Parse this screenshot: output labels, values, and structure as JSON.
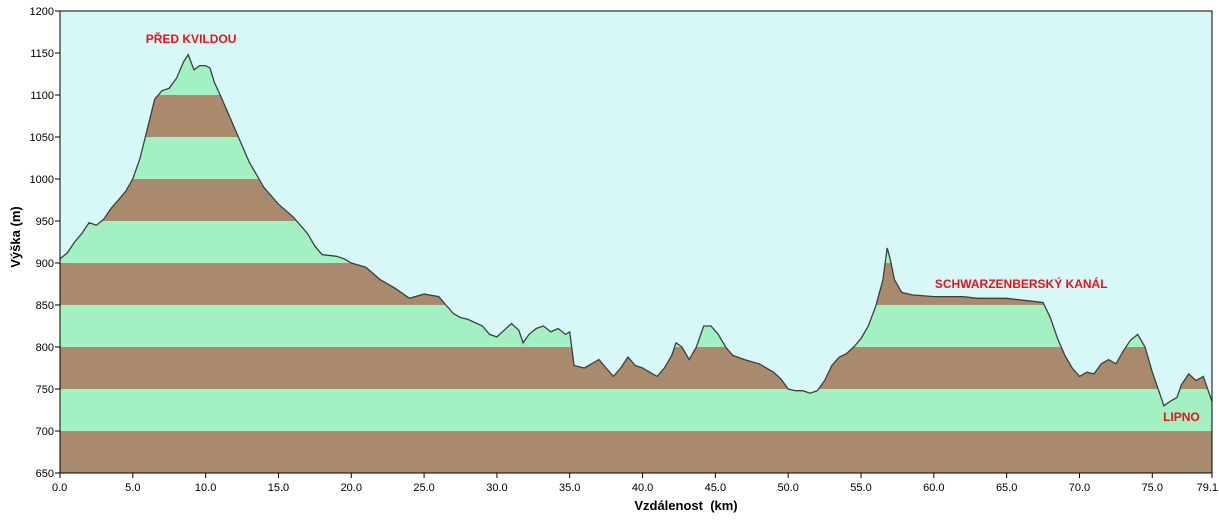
{
  "chart_data": {
    "type": "area",
    "xlabel": "Vzdálenost  (km)",
    "ylabel": "Výška (m)",
    "xlim": [
      0,
      79.1
    ],
    "ylim": [
      650,
      1200
    ],
    "x_ticks": [
      "0.0",
      "5.0",
      "10.0",
      "15.0",
      "20.0",
      "25.0",
      "30.0",
      "35.0",
      "40.0",
      "45.0",
      "50.0",
      "55.0",
      "60.0",
      "65.0",
      "70.0",
      "75.0",
      "79.1"
    ],
    "x_tick_values": [
      0,
      5,
      10,
      15,
      20,
      25,
      30,
      35,
      40,
      45,
      50,
      55,
      60,
      65,
      70,
      75,
      79.1
    ],
    "y_ticks": [
      "650",
      "700",
      "750",
      "800",
      "850",
      "900",
      "950",
      "1000",
      "1050",
      "1100",
      "1150",
      "1200"
    ],
    "y_tick_values": [
      650,
      700,
      750,
      800,
      850,
      900,
      950,
      1000,
      1050,
      1100,
      1150,
      1200
    ],
    "band_colors": [
      "#a98a6c",
      "#a3f0c2"
    ],
    "background_color": "#d8f8f8",
    "line_color": "#3a4040",
    "annotation_color": "#e8121c",
    "annotations": [
      {
        "text": "PŘED KVILDOU",
        "x": 9,
        "y": 1162
      },
      {
        "text": "SCHWARZENBERSKÝ KANÁL",
        "x": 66,
        "y": 870
      },
      {
        "text": "LIPNO",
        "x": 77,
        "y": 712
      }
    ],
    "profile": [
      [
        0,
        905
      ],
      [
        0.5,
        912
      ],
      [
        1,
        925
      ],
      [
        1.5,
        935
      ],
      [
        2,
        948
      ],
      [
        2.5,
        945
      ],
      [
        3,
        952
      ],
      [
        3.5,
        965
      ],
      [
        4,
        975
      ],
      [
        4.5,
        985
      ],
      [
        5,
        1000
      ],
      [
        5.5,
        1025
      ],
      [
        6,
        1060
      ],
      [
        6.5,
        1095
      ],
      [
        7,
        1105
      ],
      [
        7.5,
        1108
      ],
      [
        8,
        1120
      ],
      [
        8.5,
        1140
      ],
      [
        8.8,
        1148
      ],
      [
        9.2,
        1130
      ],
      [
        9.6,
        1135
      ],
      [
        10,
        1135
      ],
      [
        10.3,
        1132
      ],
      [
        10.6,
        1115
      ],
      [
        11,
        1100
      ],
      [
        11.5,
        1080
      ],
      [
        12,
        1060
      ],
      [
        12.5,
        1040
      ],
      [
        13,
        1020
      ],
      [
        13.5,
        1005
      ],
      [
        14,
        990
      ],
      [
        15,
        970
      ],
      [
        16,
        955
      ],
      [
        17,
        935
      ],
      [
        17.5,
        920
      ],
      [
        18,
        910
      ],
      [
        19,
        908
      ],
      [
        19.5,
        905
      ],
      [
        20,
        900
      ],
      [
        21,
        895
      ],
      [
        22,
        880
      ],
      [
        23,
        870
      ],
      [
        24,
        858
      ],
      [
        25,
        863
      ],
      [
        26,
        860
      ],
      [
        26.5,
        850
      ],
      [
        27,
        840
      ],
      [
        27.5,
        835
      ],
      [
        28,
        833
      ],
      [
        29,
        825
      ],
      [
        29.5,
        815
      ],
      [
        30,
        812
      ],
      [
        30.5,
        820
      ],
      [
        31,
        828
      ],
      [
        31.5,
        820
      ],
      [
        31.8,
        805
      ],
      [
        32.2,
        815
      ],
      [
        32.7,
        822
      ],
      [
        33.2,
        825
      ],
      [
        33.7,
        818
      ],
      [
        34.2,
        822
      ],
      [
        34.7,
        815
      ],
      [
        35,
        818
      ],
      [
        35.3,
        778
      ],
      [
        36,
        775
      ],
      [
        36.5,
        780
      ],
      [
        37,
        785
      ],
      [
        37.5,
        775
      ],
      [
        38,
        765
      ],
      [
        38.5,
        775
      ],
      [
        39,
        788
      ],
      [
        39.5,
        778
      ],
      [
        40,
        775
      ],
      [
        40.5,
        770
      ],
      [
        41,
        765
      ],
      [
        41.5,
        775
      ],
      [
        42,
        790
      ],
      [
        42.3,
        805
      ],
      [
        42.7,
        800
      ],
      [
        43.2,
        785
      ],
      [
        43.7,
        800
      ],
      [
        44.2,
        825
      ],
      [
        44.7,
        825
      ],
      [
        45.2,
        815
      ],
      [
        45.7,
        800
      ],
      [
        46.2,
        790
      ],
      [
        47,
        785
      ],
      [
        48,
        780
      ],
      [
        49,
        770
      ],
      [
        49.5,
        762
      ],
      [
        50,
        750
      ],
      [
        50.5,
        748
      ],
      [
        51,
        748
      ],
      [
        51.5,
        745
      ],
      [
        52,
        748
      ],
      [
        52.5,
        760
      ],
      [
        53,
        778
      ],
      [
        53.5,
        788
      ],
      [
        54,
        792
      ],
      [
        54.5,
        800
      ],
      [
        55,
        810
      ],
      [
        55.5,
        825
      ],
      [
        56,
        848
      ],
      [
        56.5,
        880
      ],
      [
        56.8,
        918
      ],
      [
        57,
        905
      ],
      [
        57.3,
        880
      ],
      [
        57.8,
        865
      ],
      [
        58.5,
        862
      ],
      [
        60,
        860
      ],
      [
        62,
        860
      ],
      [
        63,
        858
      ],
      [
        65,
        858
      ],
      [
        66.5,
        855
      ],
      [
        67.5,
        853
      ],
      [
        68,
        835
      ],
      [
        68.5,
        810
      ],
      [
        69,
        790
      ],
      [
        69.5,
        775
      ],
      [
        70,
        765
      ],
      [
        70.5,
        770
      ],
      [
        71,
        768
      ],
      [
        71.5,
        780
      ],
      [
        72,
        785
      ],
      [
        72.5,
        780
      ],
      [
        73,
        795
      ],
      [
        73.5,
        808
      ],
      [
        74,
        815
      ],
      [
        74.5,
        800
      ],
      [
        75,
        770
      ],
      [
        75.5,
        745
      ],
      [
        75.8,
        730
      ],
      [
        76.2,
        735
      ],
      [
        76.7,
        740
      ],
      [
        77,
        755
      ],
      [
        77.5,
        768
      ],
      [
        78,
        760
      ],
      [
        78.5,
        765
      ],
      [
        79.1,
        735
      ]
    ]
  }
}
